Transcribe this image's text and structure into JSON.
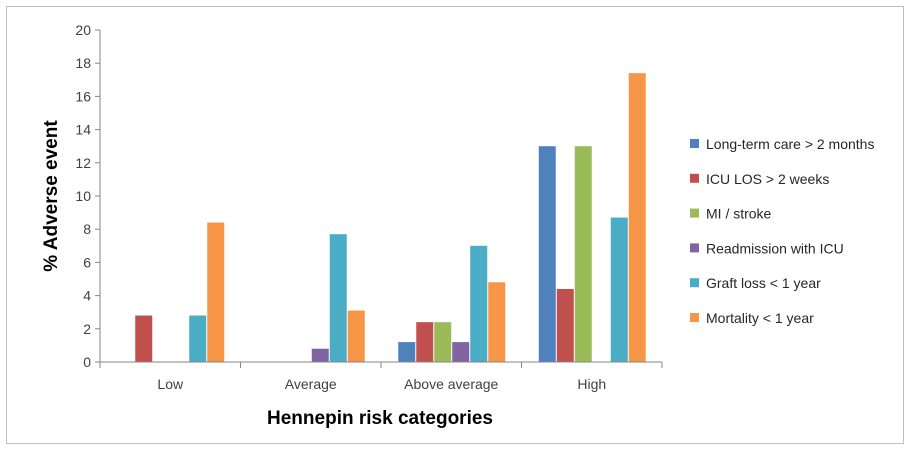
{
  "chart_data": {
    "type": "bar",
    "title": "",
    "xlabel": "Hennepin risk categories",
    "ylabel": "% Adverse event",
    "ylim": [
      0,
      20
    ],
    "ytick_step": 2,
    "grid": false,
    "legend_position": "right",
    "categories": [
      "Low",
      "Average",
      "Above average",
      "High"
    ],
    "series": [
      {
        "name": "Long-term care > 2 months",
        "color": "#4f81bd",
        "values": [
          0,
          0,
          1.2,
          13.0
        ]
      },
      {
        "name": "ICU LOS > 2 weeks",
        "color": "#c0504d",
        "values": [
          2.8,
          0,
          2.4,
          4.4
        ]
      },
      {
        "name": "MI / stroke",
        "color": "#9bbb59",
        "values": [
          0,
          0,
          2.4,
          13.0
        ]
      },
      {
        "name": "Readmission with ICU",
        "color": "#8064a2",
        "values": [
          0,
          0.8,
          1.2,
          0
        ]
      },
      {
        "name": "Graft loss < 1 year",
        "color": "#4bacc6",
        "values": [
          2.8,
          7.7,
          7.0,
          8.7
        ]
      },
      {
        "name": "Mortality < 1 year",
        "color": "#f79646",
        "values": [
          8.4,
          3.1,
          4.8,
          17.4
        ]
      }
    ]
  }
}
